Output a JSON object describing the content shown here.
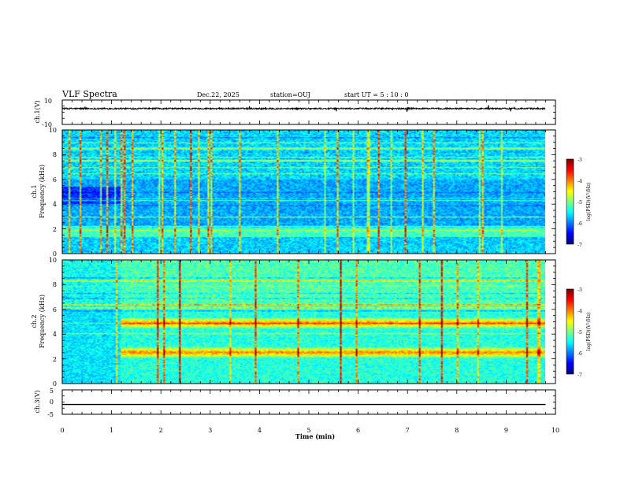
{
  "header": {
    "title": "VLF Spectra",
    "date": "Dec.22, 2025",
    "station": "station=OUJ",
    "start_time": "start  UT =   5 : 10 : 0"
  },
  "chart_data": [
    {
      "type": "line",
      "panel": "ch1-waveform",
      "ylabel": "ch.1(V)",
      "ylim": [
        -10,
        10
      ],
      "yticks": [
        "10",
        "-10"
      ],
      "baseline_value": 3,
      "x_range_min": [
        0,
        9.8
      ]
    },
    {
      "type": "heatmap",
      "panel": "ch1-spectrogram",
      "ylabel_channel": "ch.1",
      "ylabel": "Frequency (kHz)",
      "ylim": [
        0,
        10
      ],
      "yticks": [
        "0",
        "2",
        "4",
        "6",
        "8",
        "10"
      ],
      "colorbar": {
        "label": "log(PSD)(V²/Hz)",
        "range": [
          -7,
          -3
        ],
        "ticks": [
          "-3",
          "-4",
          "-5",
          "-6",
          "-7"
        ]
      },
      "x_range_min": [
        0,
        9.8
      ]
    },
    {
      "type": "heatmap",
      "panel": "ch2-spectrogram",
      "ylabel_channel": "ch.2",
      "ylabel": "Frequency (kHz)",
      "ylim": [
        0,
        10
      ],
      "yticks": [
        "0",
        "2",
        "4",
        "6",
        "8",
        "10"
      ],
      "colorbar": {
        "label": "log(PSD)(V²/Hz)",
        "range": [
          -7,
          -3
        ],
        "ticks": [
          "-3",
          "-4",
          "-5",
          "-6",
          "-7"
        ]
      },
      "emission_bands_khz": [
        2.5,
        4.9
      ],
      "x_range_min": [
        0,
        9.8
      ]
    },
    {
      "type": "line",
      "panel": "ch3-waveform",
      "ylabel": "ch.3(V)",
      "ylim": [
        -5,
        5
      ],
      "yticks": [
        "5",
        "0",
        "-5"
      ],
      "baseline_value": -1,
      "x_range_min": [
        0,
        9.8
      ]
    }
  ],
  "xaxis": {
    "label": "Time (min)",
    "range": [
      0,
      10
    ],
    "ticks": [
      "0",
      "1",
      "2",
      "3",
      "4",
      "5",
      "6",
      "7",
      "8",
      "9",
      "10"
    ]
  },
  "colors": {
    "frame": "#000000"
  }
}
